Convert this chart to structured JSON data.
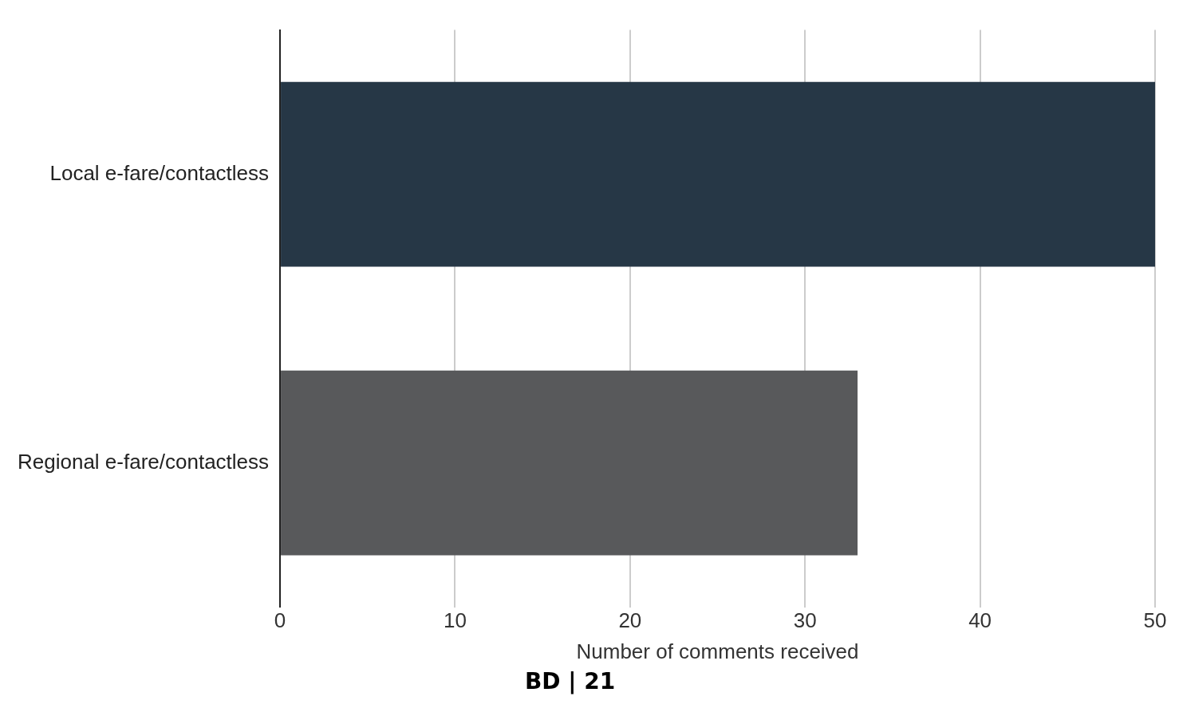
{
  "chart_data": {
    "type": "bar",
    "orientation": "horizontal",
    "xlabel": "Number of comments received",
    "categories": [
      "Local e-fare/contactless",
      "Regional e-fare/contactless"
    ],
    "values": [
      50,
      33
    ],
    "colors": [
      "#263746",
      "#58595b"
    ],
    "xlim": [
      0,
      50
    ],
    "xticks": [
      0,
      10,
      20,
      30,
      40,
      50
    ],
    "grid": "x",
    "legend": false,
    "annotations": [
      "BD | 21"
    ]
  }
}
